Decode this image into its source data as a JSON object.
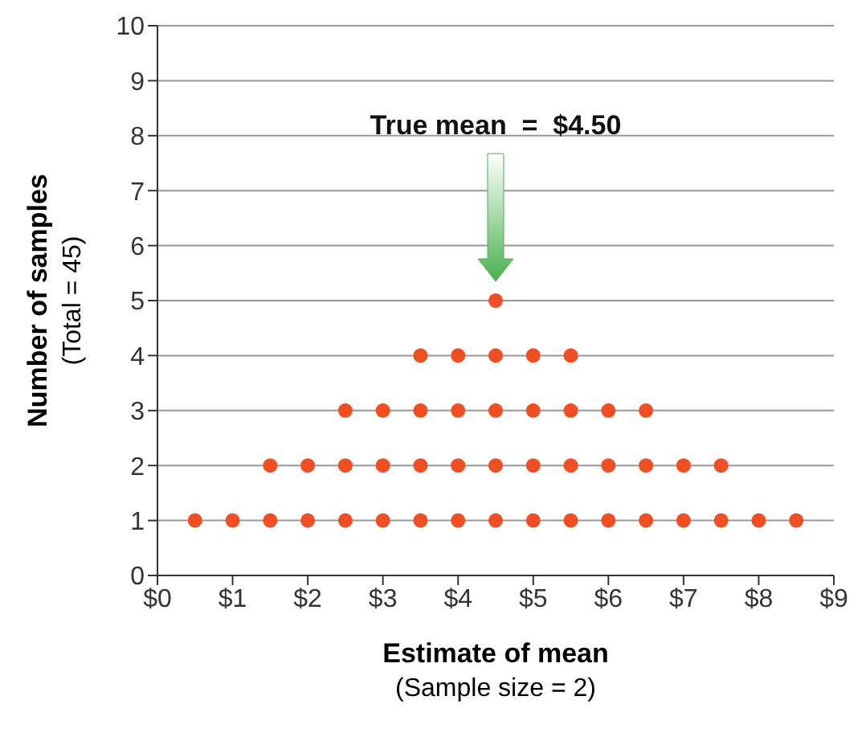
{
  "chart_data": {
    "type": "scatter",
    "xlabel": "Estimate of mean",
    "ylabel": "Number of samples",
    "annotations": [
      "True mean  =  $4.50",
      "(Total = 45)",
      "(Sample size = 2)"
    ],
    "x": [
      0.5,
      1,
      1.5,
      2,
      2.5,
      3,
      3.5,
      4,
      4.5,
      5,
      5.5,
      6,
      6.5,
      7,
      7.5,
      8,
      8.5,
      1.5,
      2,
      2.5,
      3,
      3.5,
      4,
      4.5,
      5,
      5.5,
      6,
      6.5,
      7,
      7.5,
      2.5,
      3,
      3.5,
      4,
      4.5,
      5,
      5.5,
      6,
      6.5,
      3.5,
      4,
      4.5,
      5,
      5.5,
      4.5
    ],
    "series": [
      {
        "color": "#f04e23",
        "values": [
          1,
          1,
          1,
          1,
          1,
          1,
          1,
          1,
          1,
          1,
          1,
          1,
          1,
          1,
          1,
          1,
          1,
          2,
          2,
          2,
          2,
          2,
          2,
          2,
          2,
          2,
          2,
          2,
          2,
          2,
          3,
          3,
          3,
          3,
          3,
          3,
          3,
          3,
          3,
          4,
          4,
          4,
          4,
          4,
          5
        ]
      }
    ],
    "xlim": [
      0,
      9
    ],
    "xticks": [
      {
        "value": 0,
        "label": "$0"
      },
      {
        "value": 1,
        "label": "$1"
      },
      {
        "value": 2,
        "label": "$2"
      },
      {
        "value": 3,
        "label": "$3"
      },
      {
        "value": 4,
        "label": "$4"
      },
      {
        "value": 5,
        "label": "$5"
      },
      {
        "value": 6,
        "label": "$6"
      },
      {
        "value": 7,
        "label": "$7"
      },
      {
        "value": 8,
        "label": "$8"
      },
      {
        "value": 9,
        "label": "$9"
      }
    ],
    "ylim": [
      0,
      10
    ],
    "yticks": [
      0,
      1,
      2,
      3,
      4,
      5,
      6,
      7,
      8,
      9,
      10
    ],
    "grid": "y",
    "marker": "circle"
  }
}
